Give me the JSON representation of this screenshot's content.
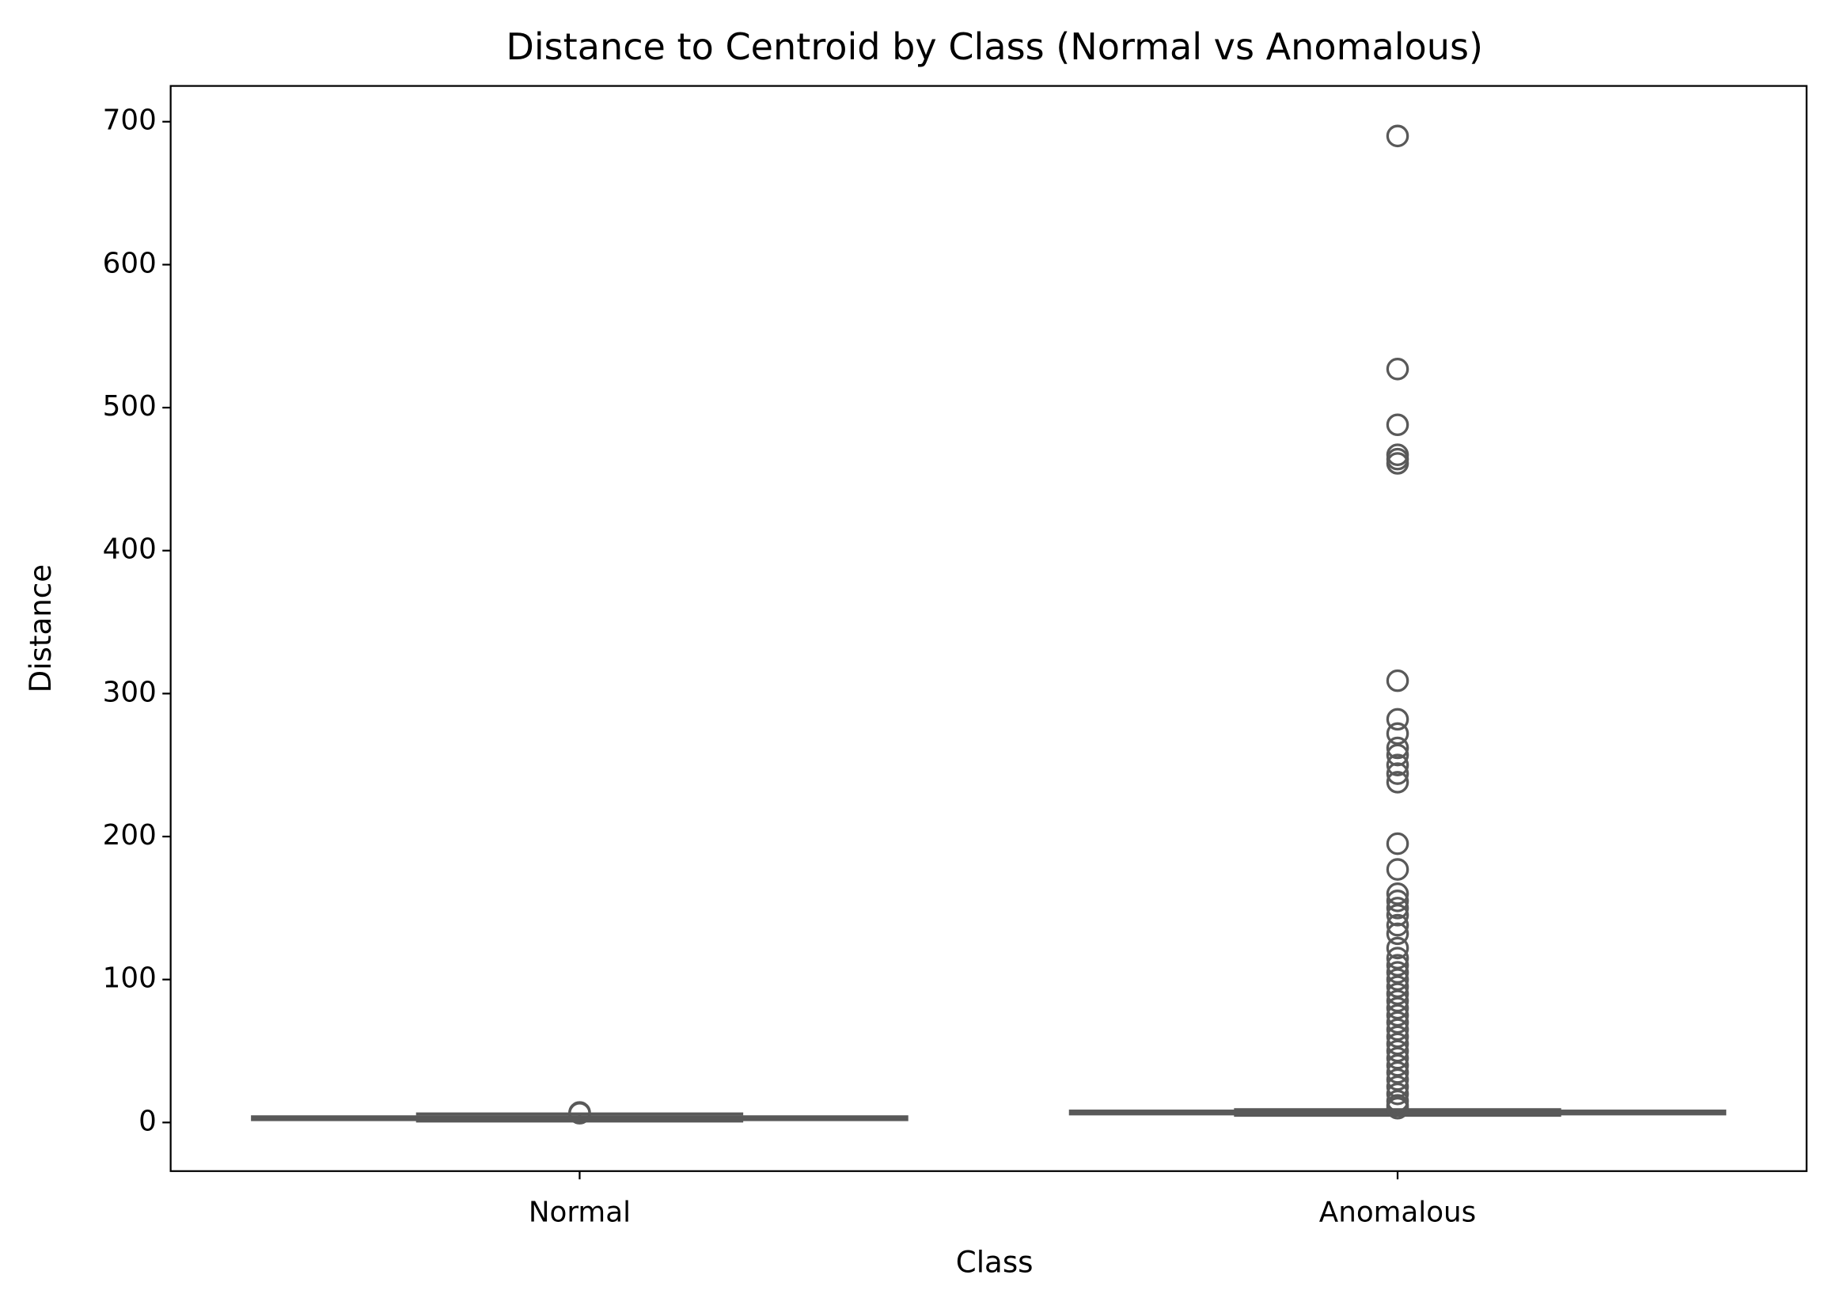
{
  "chart_data": {
    "type": "box",
    "title": "Distance to Centroid by Class (Normal vs Anomalous)",
    "x_label": "Class",
    "y_label": "Distance",
    "categories": [
      "Normal",
      "Anomalous"
    ],
    "boxes": [
      {
        "whislo": 1,
        "q1": 2,
        "med": 3,
        "q3": 4,
        "whishi": 6,
        "fliers": [
          7,
          6.5
        ]
      },
      {
        "whislo": 5,
        "q1": 6,
        "med": 7,
        "q3": 8,
        "whishi": 9,
        "fliers": [
          690,
          527,
          488,
          467,
          464,
          461,
          309,
          282,
          272,
          262,
          257,
          250,
          244,
          238,
          195,
          177,
          160,
          155,
          150,
          145,
          138,
          132,
          122,
          115,
          110,
          105,
          100,
          95,
          90,
          85,
          80,
          75,
          70,
          65,
          60,
          55,
          50,
          45,
          40,
          35,
          30,
          25,
          20,
          15,
          12,
          10
        ]
      }
    ],
    "color": "#595959",
    "ylim": [
      -34,
      725
    ],
    "yticks": [
      0,
      100,
      200,
      300,
      400,
      500,
      600,
      700
    ]
  }
}
